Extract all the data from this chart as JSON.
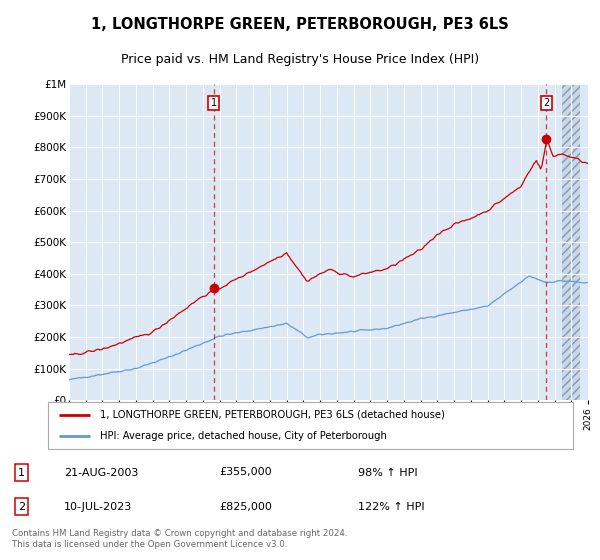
{
  "title": "1, LONGTHORPE GREEN, PETERBOROUGH, PE3 6LS",
  "subtitle": "Price paid vs. HM Land Registry's House Price Index (HPI)",
  "legend_line1": "1, LONGTHORPE GREEN, PETERBOROUGH, PE3 6LS (detached house)",
  "legend_line2": "HPI: Average price, detached house, City of Peterborough",
  "annotation1_label": "1",
  "annotation1_date": "21-AUG-2003",
  "annotation1_price": "£355,000",
  "annotation1_hpi": "98% ↑ HPI",
  "annotation1_year": 2003.64,
  "annotation1_value": 355000,
  "annotation2_label": "2",
  "annotation2_date": "10-JUL-2023",
  "annotation2_price": "£825,000",
  "annotation2_hpi": "122% ↑ HPI",
  "annotation2_year": 2023.52,
  "annotation2_value": 825000,
  "footer": "Contains HM Land Registry data © Crown copyright and database right 2024.\nThis data is licensed under the Open Government Licence v3.0.",
  "ylim": [
    0,
    1000000
  ],
  "xlim_start": 1995.0,
  "xlim_end": 2025.5,
  "hatch_start": 2024.42,
  "bg_color": "#dce9f5",
  "red_line_color": "#cc0000",
  "blue_line_color": "#6699cc",
  "title_fontsize": 10.5,
  "subtitle_fontsize": 9
}
